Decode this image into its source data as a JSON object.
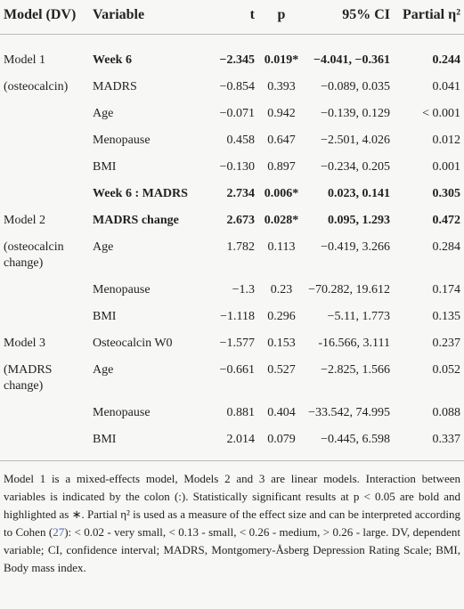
{
  "table": {
    "header": [
      "Model (DV)",
      "Variable",
      "t",
      "p",
      "95% CI",
      "Partial η²"
    ],
    "rows": [
      {
        "model": "Model 1",
        "variable": "Week 6",
        "t": "−2.345",
        "p": "0.019*",
        "ci": "−4.041, −0.361",
        "eta": "0.244",
        "bold": true
      },
      {
        "model": "(osteocalcin)",
        "variable": "MADRS",
        "t": "−0.854",
        "p": "0.393",
        "ci": "−0.089, 0.035",
        "eta": "0.041",
        "bold": false
      },
      {
        "model": null,
        "variable": "Age",
        "t": "−0.071",
        "p": "0.942",
        "ci": "−0.139, 0.129",
        "eta": "< 0.001",
        "bold": false
      },
      {
        "model": null,
        "variable": "Menopause",
        "t": "0.458",
        "p": "0.647",
        "ci": "−2.501, 4.026",
        "eta": "0.012",
        "bold": false
      },
      {
        "model": null,
        "variable": "BMI",
        "t": "−0.130",
        "p": "0.897",
        "ci": "−0.234, 0.205",
        "eta": "0.001",
        "bold": false
      },
      {
        "model": null,
        "variable": "Week 6 : MADRS",
        "t": "2.734",
        "p": "0.006*",
        "ci": "0.023, 0.141",
        "eta": "0.305",
        "bold": true
      },
      {
        "model": "Model 2",
        "variable": "MADRS change",
        "t": "2.673",
        "p": "0.028*",
        "ci": "0.095, 1.293",
        "eta": "0.472",
        "bold": true
      },
      {
        "model": "(osteocalcin change)",
        "variable": "Age",
        "t": "1.782",
        "p": "0.113",
        "ci": "−0.419, 3.266",
        "eta": "0.284",
        "bold": false
      },
      {
        "model": null,
        "variable": "Menopause",
        "t": "−1.3",
        "p": "0.23",
        "ci": "−70.282, 19.612",
        "eta": "0.174",
        "bold": false
      },
      {
        "model": null,
        "variable": "BMI",
        "t": "−1.118",
        "p": "0.296",
        "ci": "−5.11, 1.773",
        "eta": "0.135",
        "bold": false
      },
      {
        "model": "Model 3",
        "variable": "Osteocalcin W0",
        "t": "−1.577",
        "p": "0.153",
        "ci": "-16.566, 3.111",
        "eta": "0.237",
        "bold": false
      },
      {
        "model": "(MADRS change)",
        "variable": "Age",
        "t": "−0.661",
        "p": "0.527",
        "ci": "−2.825, 1.566",
        "eta": "0.052",
        "bold": false
      },
      {
        "model": null,
        "variable": "Menopause",
        "t": "0.881",
        "p": "0.404",
        "ci": "−33.542, 74.995",
        "eta": "0.088",
        "bold": false
      },
      {
        "model": null,
        "variable": "BMI",
        "t": "2.014",
        "p": "0.079",
        "ci": "−0.445, 6.598",
        "eta": "0.337",
        "bold": false
      }
    ]
  },
  "note": [
    "Model 1 is a mixed-effects model, Models 2 and 3 are linear models. Interaction between variables is indicated by the colon (:). Statistically significant results at p < 0.05 are bold and highlighted as ∗. Partial η² is used as a measure of the effect size and can be interpreted according to Cohen (",
    "27",
    "): < 0.02 - very small, < 0.13 - small, < 0.26 - medium, > 0.26 - large. DV, dependent variable; CI, confidence interval; MADRS, Montgomery-Åsberg Depression Rating Scale; BMI, Body mass index."
  ]
}
